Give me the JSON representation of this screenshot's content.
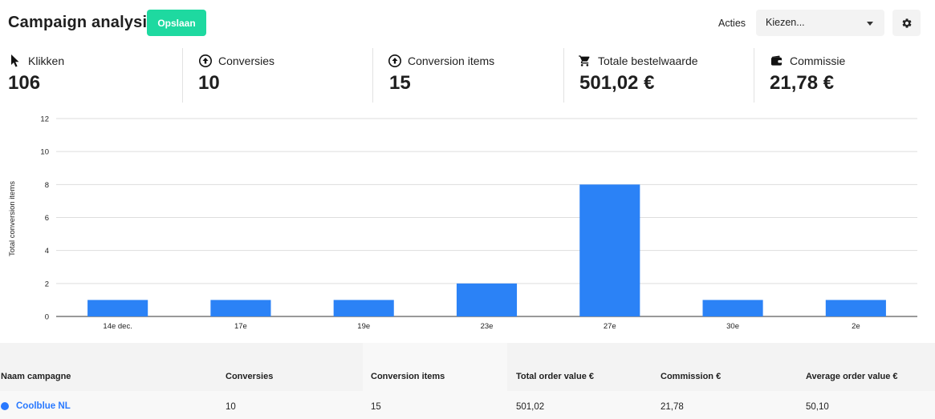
{
  "header": {
    "title": "Campaign analysis",
    "save_label": "Opslaan",
    "actions_label": "Acties",
    "select_value": "Kiezen...",
    "settings_icon": "gear-icon"
  },
  "stats": [
    {
      "icon": "cursor-icon",
      "label": "Klikken",
      "value": "106"
    },
    {
      "icon": "upload-circle-icon",
      "label": "Conversies",
      "value": "10"
    },
    {
      "icon": "upload-circle-icon",
      "label": "Conversion items",
      "value": "15"
    },
    {
      "icon": "cart-icon",
      "label": "Totale bestelwaarde",
      "value": "501,02 €"
    },
    {
      "icon": "wallet-icon",
      "label": "Commissie",
      "value": "21,78 €"
    }
  ],
  "chart_data": {
    "type": "bar",
    "ylabel": "Total conversion items",
    "xlabel": "",
    "title": "",
    "categories": [
      "14e dec.",
      "17e",
      "19e",
      "23e",
      "27e",
      "30e",
      "2e"
    ],
    "values": [
      1,
      1,
      1,
      2,
      8,
      1,
      1
    ],
    "ylim": [
      0,
      12
    ],
    "yticks": [
      0,
      2,
      4,
      6,
      8,
      10,
      12
    ],
    "grid": true,
    "bar_color": "#2b82f6"
  },
  "table": {
    "columns": [
      "Naam campagne",
      "Conversies",
      "Conversion items",
      "Total order value €",
      "Commission €",
      "Average order value €"
    ],
    "rows": [
      [
        "Coolblue NL",
        "10",
        "15",
        "501,02",
        "21,78",
        "50,10"
      ]
    ]
  },
  "colors": {
    "accent": "#1ed9a0",
    "link": "#2979ff"
  }
}
